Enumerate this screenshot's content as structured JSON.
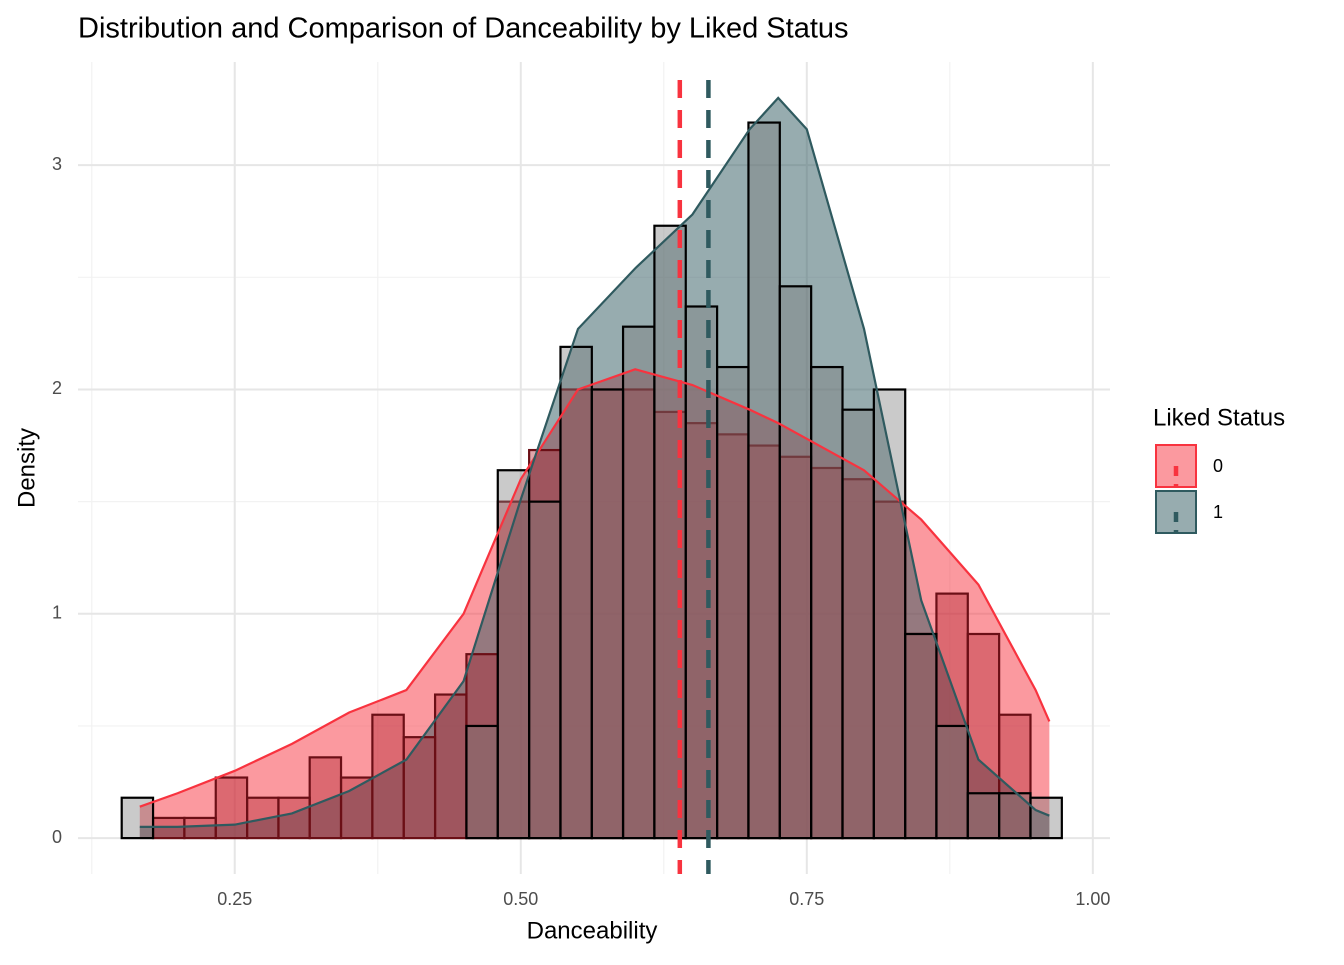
{
  "chart_data": {
    "type": "histogram",
    "title": "Distribution and Comparison of Danceability by Liked Status",
    "x_label": "Danceability",
    "y_label": "Density",
    "legend_title": "Liked Status",
    "legend": "right",
    "grid": true,
    "xlim": [
      0.113,
      1.015
    ],
    "ylim": [
      -0.16,
      3.46
    ],
    "xticks": [
      {
        "value": 0.25,
        "label": "0.25"
      },
      {
        "value": 0.5,
        "label": "0.50"
      },
      {
        "value": 0.75,
        "label": "0.75"
      },
      {
        "value": 1,
        "label": "1.00"
      }
    ],
    "yticks": [
      0,
      1,
      2,
      3
    ],
    "bins": [
      0.1512,
      0.1786,
      0.206,
      0.2334,
      0.2608,
      0.2882,
      0.3155,
      0.3429,
      0.3703,
      0.3977,
      0.4251,
      0.4525,
      0.4799,
      0.5073,
      0.5347,
      0.5621,
      0.5894,
      0.6168,
      0.6442,
      0.6716,
      0.699,
      0.7264,
      0.7538,
      0.7812,
      0.8086,
      0.836,
      0.8633,
      0.8907,
      0.9181,
      0.9455,
      0.9729
    ],
    "x": [
      0.167,
      0.2,
      0.25,
      0.3,
      0.35,
      0.4,
      0.45,
      0.5,
      0.55,
      0.6,
      0.65,
      0.7,
      0.725,
      0.75,
      0.8,
      0.85,
      0.9,
      0.95,
      0.962
    ],
    "series": [
      {
        "name": "0",
        "color": "#f8333f",
        "values": [
          0.14,
          0.2,
          0.3,
          0.42,
          0.56,
          0.66,
          1.0,
          1.6,
          2.0,
          2.09,
          2.02,
          1.91,
          1.85,
          1.78,
          1.64,
          1.42,
          1.13,
          0.66,
          0.52
        ],
        "mean": 0.639,
        "hist_color": "#b0202c",
        "hist_edge": "#6b0f16",
        "hist_values": [
          0,
          0.09,
          0.09,
          0.27,
          0.18,
          0.18,
          0.36,
          0.27,
          0.55,
          0.45,
          0.64,
          0.82,
          1.5,
          1.73,
          2.0,
          2.0,
          2.0,
          1.9,
          1.85,
          1.8,
          1.75,
          1.7,
          1.65,
          1.6,
          1.5,
          0.91,
          1.09,
          0.91,
          0.55,
          0
        ]
      },
      {
        "name": "1",
        "color": "#2f5a5f",
        "values": [
          0.05,
          0.05,
          0.06,
          0.11,
          0.21,
          0.35,
          0.7,
          1.51,
          2.27,
          2.54,
          2.78,
          3.16,
          3.3,
          3.16,
          2.27,
          1.06,
          0.35,
          0.125,
          0.1
        ],
        "mean": 0.664,
        "hist_color": "#7a7a7a",
        "hist_edge": "#000000",
        "hist_values": [
          0.18,
          0,
          0,
          0,
          0,
          0,
          0,
          0,
          0,
          0,
          0,
          0.5,
          1.64,
          1.5,
          2.19,
          2.0,
          2.28,
          2.73,
          2.37,
          2.1,
          3.19,
          2.46,
          2.1,
          1.91,
          2.0,
          0.91,
          0.5,
          0.2,
          0.2,
          0.18
        ]
      }
    ]
  }
}
